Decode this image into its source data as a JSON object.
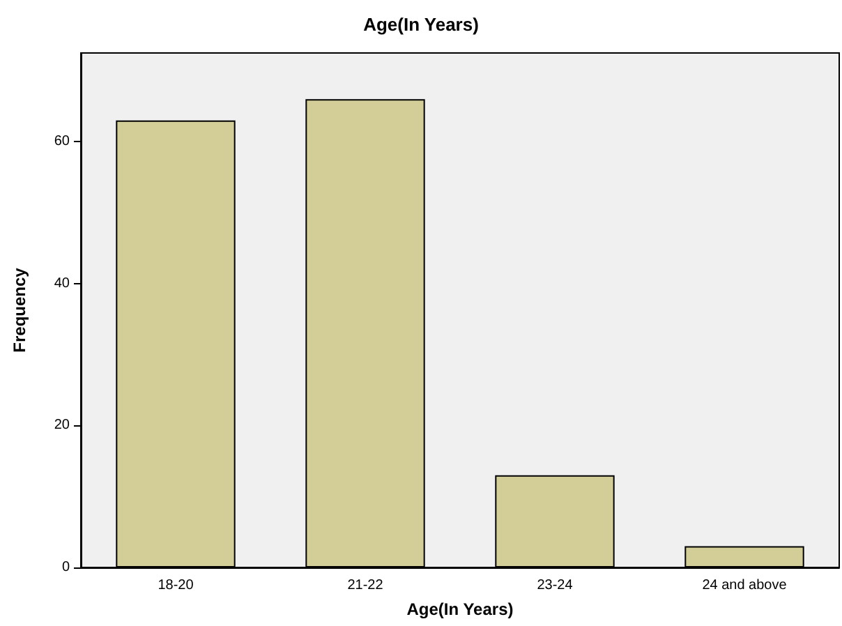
{
  "chart_data": {
    "type": "bar",
    "title": "Age(In Years)",
    "xlabel": "Age(In Years)",
    "ylabel": "Frequency",
    "categories": [
      "18-20",
      "21-22",
      "23-24",
      "24 and above"
    ],
    "values": [
      63,
      66,
      13,
      3
    ],
    "color": "#d3ce97",
    "ylim": [
      0,
      72.5
    ],
    "yticks": [
      0,
      20,
      40,
      60
    ],
    "grid": false
  }
}
